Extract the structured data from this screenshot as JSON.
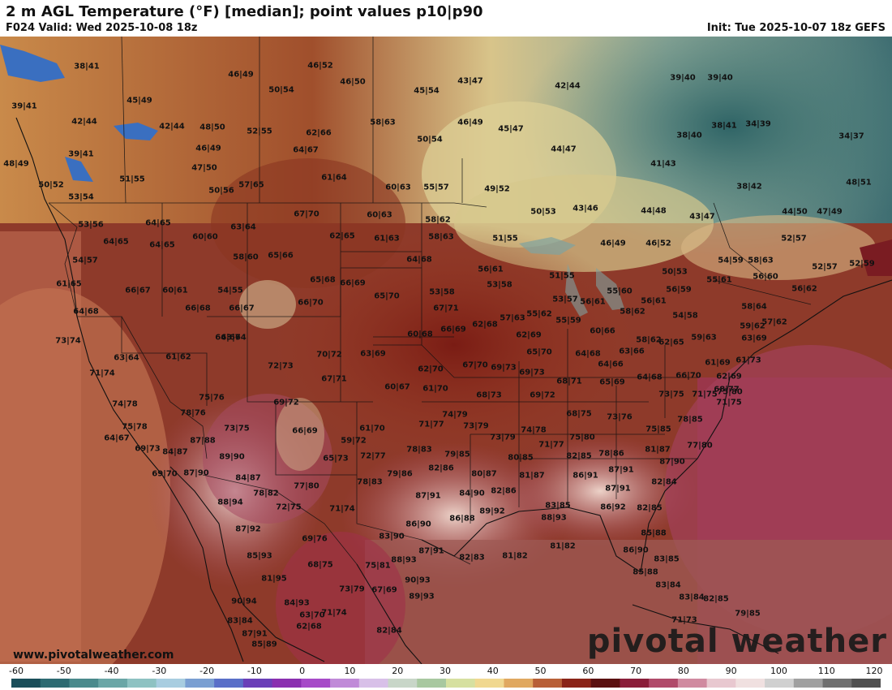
{
  "header": {
    "title": "2 m AGL Temperature (°F) [median]; point values p10|p90",
    "valid": "F024 Valid: Wed 2025-10-08 18z",
    "init": "Init: Tue 2025-10-07 18z GEFS"
  },
  "footer": {
    "website": "www.pivotalweather.com",
    "logo": "pivotal weather"
  },
  "colorbar": {
    "ticks": [
      "-60",
      "-50",
      "-40",
      "-30",
      "-20",
      "-10",
      "0",
      "10",
      "20",
      "30",
      "40",
      "50",
      "60",
      "70",
      "80",
      "90",
      "100",
      "110",
      "120"
    ],
    "colors": [
      "#1a4e5a",
      "#2d6b72",
      "#4a8a8c",
      "#6aa6a6",
      "#8ec2c2",
      "#a8cde0",
      "#7a9fd2",
      "#5a6fc8",
      "#6a3fb8",
      "#8a2fb0",
      "#a64ac8",
      "#c08ad8",
      "#d8c0e8",
      "#c8d6c8",
      "#a8c8a0",
      "#d6e0a0",
      "#f0d890",
      "#e0a860",
      "#b86038",
      "#8a2418",
      "#5a1010",
      "#8a1e3a",
      "#b04a6a",
      "#d08aa0",
      "#e8c8d0",
      "#f0e0e0",
      "#d0d0d0",
      "#a0a0a0",
      "#707070",
      "#505050"
    ]
  },
  "point_values": [
    "38|41",
    "46|49",
    "46|52",
    "46|50",
    "50|54",
    "45|54",
    "43|47",
    "42|44",
    "39|40",
    "39|40",
    "39|41",
    "45|49",
    "42|44",
    "42|44",
    "48|50",
    "52|55",
    "62|66",
    "58|63",
    "46|49",
    "45|47",
    "38|40",
    "38|41",
    "34|39",
    "34|37",
    "39|41",
    "46|49",
    "64|67",
    "50|54",
    "44|47",
    "41|43",
    "48|49",
    "51|55",
    "47|50",
    "61|64",
    "60|63",
    "55|57",
    "49|52",
    "38|42",
    "48|51",
    "50|52",
    "50|56",
    "57|65",
    "53|54",
    "67|70",
    "60|63",
    "58|62",
    "50|53",
    "43|46",
    "44|48",
    "43|47",
    "44|50",
    "47|49",
    "53|56",
    "64|65",
    "63|64",
    "62|65",
    "61|63",
    "58|63",
    "51|55",
    "46|49",
    "46|52",
    "52|57",
    "64|65",
    "64|65",
    "60|60",
    "58|60",
    "65|66",
    "64|68",
    "54|59",
    "58|63",
    "54|57",
    "65|68",
    "66|69",
    "56|61",
    "50|53",
    "52|59",
    "56|60",
    "53|58",
    "61|65",
    "66|67",
    "60|61",
    "54|55",
    "66|67",
    "66|70",
    "65|70",
    "53|58",
    "51|55",
    "56|59",
    "55|61",
    "52|57",
    "56|62",
    "64|68",
    "66|68",
    "67|71",
    "57|63",
    "55|62",
    "53|57",
    "56|61",
    "55|60",
    "58|62",
    "58|64",
    "73|74",
    "64|67",
    "63|64",
    "60|68",
    "66|69",
    "62|68",
    "55|59",
    "56|61",
    "54|58",
    "57|62",
    "63|64",
    "61|62",
    "70|72",
    "63|69",
    "62|69",
    "60|66",
    "58|62",
    "59|63",
    "59|62",
    "72|73",
    "62|70",
    "65|70",
    "64|68",
    "63|66",
    "62|65",
    "63|69",
    "71|74",
    "67|71",
    "60|67",
    "67|70",
    "69|73",
    "69|73",
    "64|66",
    "61|69",
    "61|73",
    "62|69",
    "61|70",
    "68|71",
    "65|69",
    "64|68",
    "66|70",
    "68|77",
    "74|78",
    "75|76",
    "69|72",
    "68|73",
    "69|72",
    "73|75",
    "71|75",
    "75|80",
    "71|75",
    "78|76",
    "73|75",
    "61|70",
    "74|79",
    "68|75",
    "73|76",
    "78|85",
    "75|78",
    "64|67",
    "66|69",
    "71|77",
    "73|79",
    "74|78",
    "75|80",
    "75|85",
    "87|88",
    "59|72",
    "73|79",
    "71|77",
    "81|87",
    "77|80",
    "69|73",
    "84|87",
    "89|90",
    "65|73",
    "72|77",
    "78|83",
    "79|85",
    "80|85",
    "82|85",
    "78|86",
    "87|90",
    "69|70",
    "87|90",
    "82|86",
    "80|87",
    "81|87",
    "86|91",
    "87|91",
    "82|84",
    "84|87",
    "79|86",
    "87|91",
    "84|90",
    "82|86",
    "87|91",
    "78|82",
    "77|80",
    "78|83",
    "88|94",
    "72|75",
    "71|74",
    "89|92",
    "86|88",
    "83|85",
    "86|92",
    "82|85",
    "88|93",
    "86|90",
    "87|92",
    "69|76",
    "83|90",
    "85|88",
    "87|91",
    "82|83",
    "81|82",
    "81|82",
    "86|90",
    "85|93",
    "68|75",
    "88|93",
    "75|81",
    "83|85",
    "85|88",
    "81|95",
    "90|93",
    "67|69",
    "83|84",
    "90|94",
    "84|93",
    "73|79",
    "89|93",
    "83|84",
    "87|91",
    "71|74",
    "82|84",
    "82|85",
    "71|73",
    "83|84",
    "63|70",
    "79|85",
    "85|89",
    "62|68"
  ]
}
